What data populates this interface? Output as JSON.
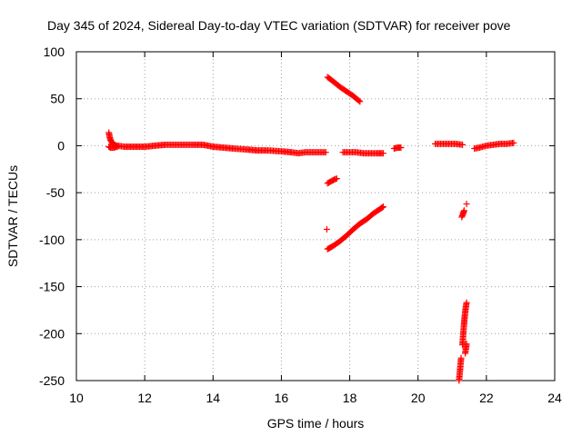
{
  "chart_data": {
    "type": "scatter",
    "title": "Day 345 of 2024, Sidereal Day-to-day VTEC variation (SDTVAR) for receiver pove",
    "xlabel": "GPS time / hours",
    "ylabel": "SDTVAR / TECUs",
    "xlim": [
      10,
      24
    ],
    "ylim": [
      -250,
      100
    ],
    "xticks": [
      10,
      12,
      14,
      16,
      18,
      20,
      22,
      24
    ],
    "yticks": [
      100,
      50,
      0,
      -50,
      -100,
      -150,
      -200,
      -250
    ],
    "xtick_labels": [
      "10",
      "12",
      "14",
      "16",
      "18",
      "20",
      "22",
      "24"
    ],
    "ytick_labels": [
      "100",
      "50",
      "0",
      "-50",
      "-100",
      "-150",
      "-200",
      "-250"
    ],
    "grid": true,
    "marker": "plus",
    "color": "#ff0000",
    "series": [
      {
        "segments": [
          [
            [
              10.95,
              14
            ],
            [
              10.97,
              10
            ],
            [
              11.0,
              6
            ],
            [
              11.05,
              3
            ],
            [
              11.1,
              1
            ],
            [
              11.2,
              0
            ],
            [
              11.4,
              -1
            ],
            [
              11.7,
              -1
            ],
            [
              12.0,
              -1
            ],
            [
              12.3,
              0
            ],
            [
              12.6,
              1
            ],
            [
              13.0,
              1
            ],
            [
              13.4,
              1
            ],
            [
              13.7,
              1
            ],
            [
              14.0,
              -1
            ],
            [
              14.3,
              -2
            ],
            [
              14.6,
              -3
            ],
            [
              15.0,
              -4
            ],
            [
              15.3,
              -5
            ],
            [
              15.6,
              -5
            ],
            [
              16.0,
              -6
            ],
            [
              16.3,
              -7
            ],
            [
              16.5,
              -8
            ],
            [
              16.7,
              -7
            ],
            [
              16.9,
              -7
            ],
            [
              17.1,
              -7
            ],
            [
              17.3,
              -7
            ]
          ],
          [
            [
              10.95,
              -1
            ],
            [
              11.0,
              -2
            ],
            [
              11.1,
              -2
            ],
            [
              11.2,
              -1
            ]
          ],
          [
            [
              17.35,
              73
            ],
            [
              17.5,
              69
            ],
            [
              17.7,
              63
            ],
            [
              17.9,
              58
            ],
            [
              18.1,
              53
            ],
            [
              18.3,
              47
            ]
          ],
          [
            [
              17.35,
              -40
            ],
            [
              17.45,
              -38
            ],
            [
              17.55,
              -36
            ],
            [
              17.62,
              -35
            ]
          ],
          [
            [
              17.33,
              -89
            ]
          ],
          [
            [
              17.35,
              -110
            ],
            [
              17.5,
              -107
            ],
            [
              17.7,
              -102
            ],
            [
              17.9,
              -96
            ],
            [
              18.1,
              -89
            ],
            [
              18.3,
              -83
            ],
            [
              18.5,
              -78
            ],
            [
              18.7,
              -72
            ],
            [
              18.9,
              -67
            ],
            [
              18.98,
              -65
            ]
          ],
          [
            [
              17.8,
              -7
            ],
            [
              18.0,
              -7
            ],
            [
              18.2,
              -7
            ],
            [
              18.4,
              -8
            ],
            [
              18.6,
              -8
            ],
            [
              18.8,
              -8
            ],
            [
              18.98,
              -8
            ]
          ],
          [
            [
              19.3,
              -3
            ],
            [
              19.4,
              -2
            ],
            [
              19.5,
              -2
            ]
          ],
          [
            [
              20.5,
              2
            ],
            [
              20.7,
              2
            ],
            [
              20.9,
              2
            ],
            [
              21.1,
              2
            ],
            [
              21.3,
              1
            ]
          ],
          [
            [
              21.65,
              -3
            ],
            [
              21.8,
              -2
            ],
            [
              22.0,
              0
            ],
            [
              22.2,
              1
            ],
            [
              22.4,
              2
            ],
            [
              22.6,
              2
            ],
            [
              22.8,
              3
            ]
          ],
          [
            [
              21.28,
              -76
            ],
            [
              21.32,
              -72
            ],
            [
              21.35,
              -69
            ]
          ],
          [
            [
              21.42,
              -62
            ]
          ],
          [
            [
              21.3,
              -212
            ],
            [
              21.33,
              -197
            ],
            [
              21.36,
              -184
            ],
            [
              21.39,
              -174
            ],
            [
              21.42,
              -167
            ]
          ],
          [
            [
              21.38,
              -221
            ],
            [
              21.42,
              -211
            ]
          ],
          [
            [
              21.2,
              -250
            ],
            [
              21.23,
              -238
            ],
            [
              21.26,
              -226
            ]
          ]
        ]
      }
    ]
  }
}
